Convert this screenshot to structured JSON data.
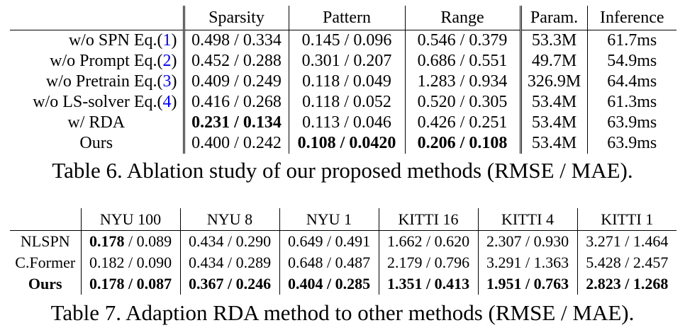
{
  "table6": {
    "caption": "Table 6. Ablation study of our proposed methods (RMSE / MAE).",
    "headers": [
      "Sparsity",
      "Pattern",
      "Range",
      "Param.",
      "Inference"
    ],
    "rows": [
      {
        "label": "w/o SPN Eq.(",
        "ref": "1",
        "label_end": ")",
        "sparsity": [
          "0.498",
          "0.334"
        ],
        "pattern": [
          "0.145",
          "0.096"
        ],
        "range": [
          "0.546",
          "0.379"
        ],
        "param": "53.3M",
        "inference": "61.7ms"
      },
      {
        "label": "w/o Prompt Eq.(",
        "ref": "2",
        "label_end": ")",
        "sparsity": [
          "0.452",
          "0.288"
        ],
        "pattern": [
          "0.301",
          "0.207"
        ],
        "range": [
          "0.686",
          "0.551"
        ],
        "param": "49.7M",
        "inference": "54.9ms"
      },
      {
        "label": "w/o Pretrain Eq.(",
        "ref": "3",
        "label_end": ")",
        "sparsity": [
          "0.409",
          "0.249"
        ],
        "pattern": [
          "0.118",
          "0.049"
        ],
        "range": [
          "1.283",
          "0.934"
        ],
        "param": "326.9M",
        "inference": "64.4ms"
      },
      {
        "label": "w/o LS-solver Eq.(",
        "ref": "4",
        "label_end": ")",
        "sparsity": [
          "0.416",
          "0.268"
        ],
        "pattern": [
          "0.118",
          "0.052"
        ],
        "range": [
          "0.520",
          "0.305"
        ],
        "param": "53.4M",
        "inference": "61.3ms"
      },
      {
        "label": "w/ RDA",
        "ref": "",
        "label_end": "",
        "sparsity": [
          "0.231",
          "0.134"
        ],
        "pattern": [
          "0.113",
          "0.046"
        ],
        "range": [
          "0.426",
          "0.251"
        ],
        "param": "53.4M",
        "inference": "63.9ms"
      },
      {
        "label": "Ours",
        "ref": "",
        "label_end": "",
        "sparsity": [
          "0.400",
          "0.242"
        ],
        "pattern": [
          "0.108",
          "0.0420"
        ],
        "range": [
          "0.206",
          "0.108"
        ],
        "param": "53.4M",
        "inference": "63.9ms"
      }
    ]
  },
  "table7": {
    "caption": "Table 7. Adaption RDA method to other methods (RMSE / MAE).",
    "headers": [
      "NYU 100",
      "NYU 8",
      "NYU 1",
      "KITTI 16",
      "KITTI 4",
      "KITTI 1"
    ],
    "rows": [
      {
        "label": "NLSPN",
        "cells": [
          [
            "0.178",
            "0.089"
          ],
          [
            "0.434",
            "0.290"
          ],
          [
            "0.649",
            "0.491"
          ],
          [
            "1.662",
            "0.620"
          ],
          [
            "2.307",
            "0.930"
          ],
          [
            "3.271",
            "1.464"
          ]
        ]
      },
      {
        "label": "C.Former",
        "cells": [
          [
            "0.182",
            "0.090"
          ],
          [
            "0.434",
            "0.289"
          ],
          [
            "0.648",
            "0.487"
          ],
          [
            "2.179",
            "0.796"
          ],
          [
            "3.291",
            "1.363"
          ],
          [
            "5.428",
            "2.457"
          ]
        ]
      },
      {
        "label": "Ours",
        "cells": [
          [
            "0.178",
            "0.087"
          ],
          [
            "0.367",
            "0.246"
          ],
          [
            "0.404",
            "0.285"
          ],
          [
            "1.351",
            "0.413"
          ],
          [
            "1.951",
            "0.763"
          ],
          [
            "2.823",
            "1.268"
          ]
        ]
      }
    ]
  }
}
